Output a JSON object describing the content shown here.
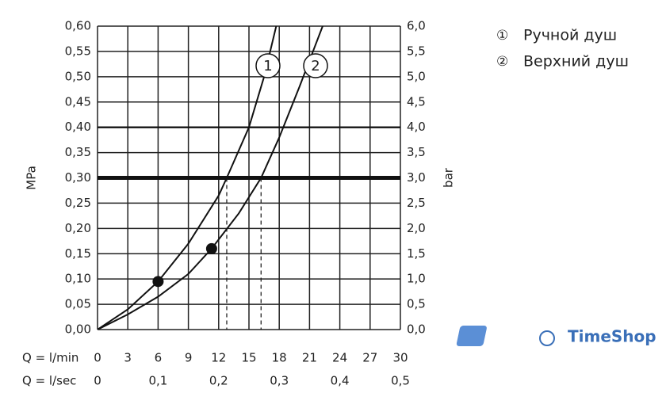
{
  "chart_data": {
    "type": "line",
    "y_label": "MPa",
    "y2_label": "bar",
    "x_label": "Q = l/min",
    "x2_label": "Q = l/sec",
    "xlim": [
      0,
      30
    ],
    "xticks": [
      0,
      3,
      6,
      9,
      12,
      15,
      18,
      21,
      24,
      27,
      30
    ],
    "x2lim": [
      0,
      0.5
    ],
    "x2ticks": [
      0,
      {
        "value": 0.1,
        "label": "0,1"
      },
      {
        "value": 0.2,
        "label": "0,2"
      },
      {
        "value": 0.3,
        "label": "0,3"
      },
      {
        "value": 0.4,
        "label": "0,4"
      },
      {
        "value": 0.5,
        "label": "0,5"
      }
    ],
    "ylim": [
      0,
      0.6
    ],
    "yticks": [
      {
        "value": 0,
        "label": "0,00"
      },
      {
        "value": 0.05,
        "label": "0,05"
      },
      {
        "value": 0.1,
        "label": "0,10"
      },
      {
        "value": 0.15,
        "label": "0,15"
      },
      {
        "value": 0.2,
        "label": "0,20"
      },
      {
        "value": 0.25,
        "label": "0,25"
      },
      {
        "value": 0.3,
        "label": "0,30"
      },
      {
        "value": 0.35,
        "label": "0,35"
      },
      {
        "value": 0.4,
        "label": "0,40"
      },
      {
        "value": 0.45,
        "label": "0,45"
      },
      {
        "value": 0.5,
        "label": "0,50"
      },
      {
        "value": 0.55,
        "label": "0,55"
      },
      {
        "value": 0.6,
        "label": "0,60"
      }
    ],
    "y2lim": [
      0,
      6
    ],
    "y2ticks": [
      {
        "value": 0,
        "label": "0,0"
      },
      {
        "value": 0.5,
        "label": "0,5"
      },
      {
        "value": 1,
        "label": "1,0"
      },
      {
        "value": 1.5,
        "label": "1,5"
      },
      {
        "value": 2,
        "label": "2,0"
      },
      {
        "value": 2.5,
        "label": "2,5"
      },
      {
        "value": 3,
        "label": "3,0"
      },
      {
        "value": 3.5,
        "label": "3,5"
      },
      {
        "value": 4,
        "label": "4,0"
      },
      {
        "value": 4.5,
        "label": "4,5"
      },
      {
        "value": 5,
        "label": "5,0"
      },
      {
        "value": 5.5,
        "label": "5,5"
      },
      {
        "value": 6,
        "label": "6,0"
      }
    ],
    "grid": true,
    "color": "#111111",
    "reference_y": 0.3,
    "bold_grid_y": 0.4,
    "series": [
      {
        "name": "Ручной душ",
        "curve_label": "1",
        "legend_symbol": "①",
        "x": [
          0,
          3,
          6,
          9,
          12,
          12.8,
          15,
          16.5,
          17.7
        ],
        "values": [
          0,
          0.04,
          0.095,
          0.17,
          0.265,
          0.3,
          0.4,
          0.5,
          0.6
        ],
        "point": {
          "x": 6,
          "y": 0.095
        },
        "drop_x": 12.8
      },
      {
        "name": "Верхний душ",
        "curve_label": "2",
        "legend_symbol": "②",
        "x": [
          0,
          3,
          6,
          9,
          11.3,
          14,
          16.2,
          18,
          20,
          22.3
        ],
        "values": [
          0,
          0.03,
          0.065,
          0.11,
          0.16,
          0.23,
          0.3,
          0.38,
          0.48,
          0.6
        ],
        "point": {
          "x": 11.3,
          "y": 0.16
        },
        "drop_x": 16.2
      }
    ],
    "watermark": "TimeShop"
  }
}
